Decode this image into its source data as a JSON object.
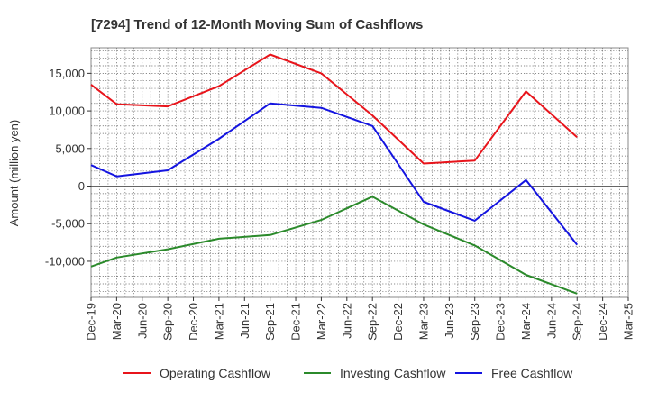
{
  "chart_data": {
    "type": "line",
    "title": "[7294]  Trend of 12-Month Moving Sum of Cashflows",
    "xlabel": "",
    "ylabel": "Amount (million yen)",
    "categories": [
      "Dec-19",
      "Mar-20",
      "Jun-20",
      "Sep-20",
      "Dec-20",
      "Mar-21",
      "Jun-21",
      "Sep-21",
      "Dec-21",
      "Mar-22",
      "Jun-22",
      "Sep-22",
      "Dec-22",
      "Mar-23",
      "Jun-23",
      "Sep-23",
      "Dec-23",
      "Mar-24",
      "Jun-24",
      "Sep-24",
      "Dec-24",
      "Mar-25"
    ],
    "ylim": [
      -14800,
      18400
    ],
    "yticks": [
      -10000,
      -5000,
      0,
      5000,
      10000,
      15000
    ],
    "ytick_labels": [
      "-10,000",
      "-5,000",
      "0",
      "5,000",
      "10,000",
      "15,000"
    ],
    "grid": true,
    "legend_position": "bottom",
    "series": [
      {
        "name": "Operating Cashflow",
        "color": "#e8141b",
        "points": [
          [
            "Dec-19",
            13500
          ],
          [
            "Mar-20",
            10900
          ],
          [
            "Sep-20",
            10600
          ],
          [
            "Mar-21",
            13300
          ],
          [
            "Sep-21",
            17500
          ],
          [
            "Mar-22",
            15000
          ],
          [
            "Sep-22",
            9400
          ],
          [
            "Mar-23",
            3000
          ],
          [
            "Sep-23",
            3400
          ],
          [
            "Mar-24",
            12600
          ],
          [
            "Sep-24",
            6500
          ]
        ]
      },
      {
        "name": "Investing Cashflow",
        "color": "#2b8a2b",
        "points": [
          [
            "Dec-19",
            -10700
          ],
          [
            "Mar-20",
            -9500
          ],
          [
            "Sep-20",
            -8400
          ],
          [
            "Mar-21",
            -7000
          ],
          [
            "Sep-21",
            -6500
          ],
          [
            "Mar-22",
            -4500
          ],
          [
            "Sep-22",
            -1400
          ],
          [
            "Mar-23",
            -5100
          ],
          [
            "Sep-23",
            -7900
          ],
          [
            "Mar-24",
            -11800
          ],
          [
            "Sep-24",
            -14300
          ]
        ]
      },
      {
        "name": "Free Cashflow",
        "color": "#1414e0",
        "points": [
          [
            "Dec-19",
            2800
          ],
          [
            "Mar-20",
            1300
          ],
          [
            "Sep-20",
            2100
          ],
          [
            "Mar-21",
            6300
          ],
          [
            "Sep-21",
            11000
          ],
          [
            "Mar-22",
            10400
          ],
          [
            "Sep-22",
            8000
          ],
          [
            "Mar-23",
            -2100
          ],
          [
            "Sep-23",
            -4600
          ],
          [
            "Mar-24",
            800
          ],
          [
            "Sep-24",
            -7800
          ]
        ]
      }
    ]
  }
}
